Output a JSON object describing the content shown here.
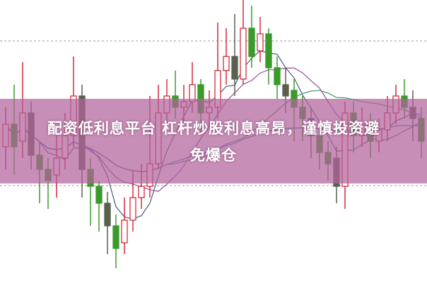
{
  "title": {
    "line1": "配资低利息平台 杠杆炒股利息高昂，谨慎投资避",
    "line2": "免爆仓"
  },
  "colors": {
    "up": "#d42a3a",
    "down": "#3a9a2a",
    "down_dark": "#5a6050",
    "banner": "#b2629b",
    "text": "#ffffff"
  },
  "candlestick": {
    "fields": [
      "open",
      "close",
      "high",
      "low"
    ],
    "candles": [
      [
        48,
        56,
        62,
        40
      ],
      [
        56,
        48,
        70,
        38
      ],
      [
        50,
        60,
        78,
        44
      ],
      [
        60,
        45,
        64,
        40
      ],
      [
        45,
        40,
        50,
        28
      ],
      [
        40,
        36,
        44,
        26
      ],
      [
        38,
        44,
        52,
        30
      ],
      [
        44,
        52,
        60,
        40
      ],
      [
        52,
        66,
        80,
        48
      ],
      [
        66,
        40,
        70,
        30
      ],
      [
        40,
        34,
        44,
        20
      ],
      [
        34,
        28,
        36,
        18
      ],
      [
        28,
        20,
        32,
        10
      ],
      [
        20,
        12,
        24,
        5
      ],
      [
        14,
        22,
        30,
        10
      ],
      [
        22,
        30,
        40,
        18
      ],
      [
        30,
        34,
        42,
        26
      ],
      [
        34,
        42,
        66,
        30
      ],
      [
        42,
        60,
        70,
        40
      ],
      [
        60,
        66,
        72,
        55
      ],
      [
        66,
        62,
        75,
        58
      ],
      [
        62,
        64,
        70,
        56
      ],
      [
        64,
        70,
        78,
        60
      ],
      [
        70,
        60,
        72,
        52
      ],
      [
        60,
        62,
        68,
        55
      ],
      [
        62,
        75,
        92,
        58
      ],
      [
        75,
        80,
        90,
        70
      ],
      [
        80,
        72,
        95,
        66
      ],
      [
        72,
        90,
        100,
        70
      ],
      [
        90,
        80,
        98,
        76
      ],
      [
        82,
        88,
        94,
        78
      ],
      [
        88,
        76,
        90,
        70
      ],
      [
        76,
        70,
        80,
        65
      ],
      [
        70,
        66,
        76,
        60
      ],
      [
        68,
        62,
        72,
        50
      ],
      [
        62,
        58,
        66,
        50
      ],
      [
        58,
        52,
        62,
        44
      ],
      [
        52,
        46,
        56,
        40
      ],
      [
        46,
        42,
        50,
        36
      ],
      [
        44,
        34,
        48,
        28
      ],
      [
        34,
        60,
        64,
        26
      ],
      [
        60,
        52,
        64,
        46
      ],
      [
        52,
        56,
        62,
        48
      ],
      [
        56,
        50,
        60,
        44
      ],
      [
        50,
        54,
        58,
        46
      ],
      [
        54,
        60,
        66,
        50
      ],
      [
        60,
        66,
        70,
        56
      ],
      [
        66,
        62,
        72,
        58
      ],
      [
        62,
        58,
        68,
        50
      ],
      [
        58,
        50,
        62,
        44
      ]
    ],
    "moving_averages": [
      {
        "period": 5,
        "color": "#4a5a7a"
      },
      {
        "period": 10,
        "color": "#9a4aa0"
      },
      {
        "period": 20,
        "color": "#3a9a6a"
      },
      {
        "period": 40,
        "color": "#3a6ab0"
      }
    ]
  }
}
